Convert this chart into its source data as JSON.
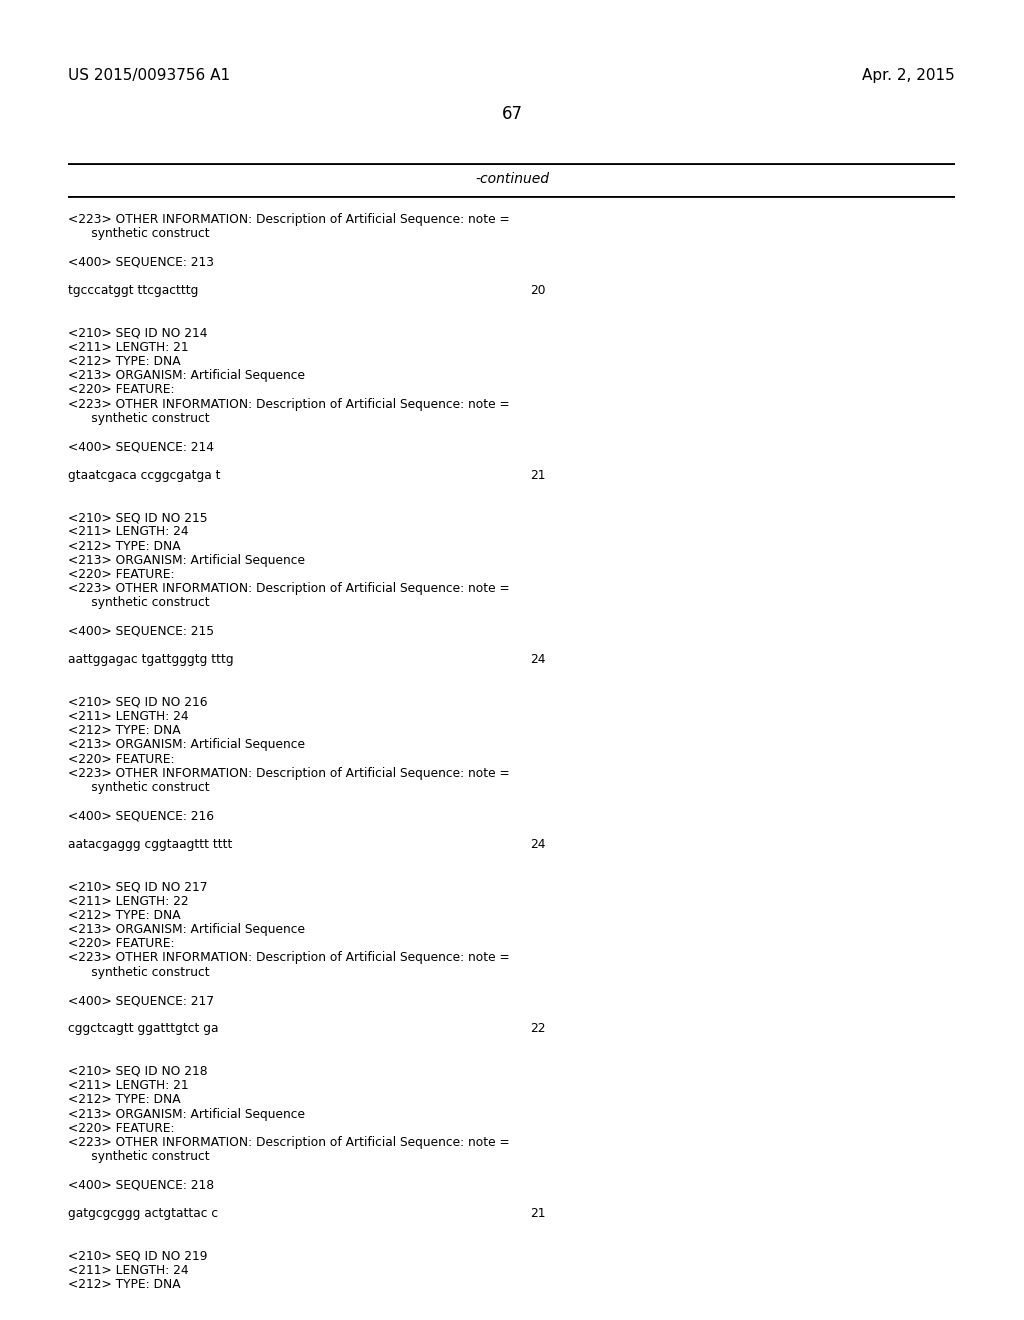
{
  "header_left": "US 2015/0093756 A1",
  "header_right": "Apr. 2, 2015",
  "page_number": "67",
  "continued_label": "-continued",
  "background_color": "#ffffff",
  "text_color": "#000000",
  "content_lines": [
    {
      "text": "<223> OTHER INFORMATION: Description of Artificial Sequence: note =",
      "indent": 0,
      "type": "meta"
    },
    {
      "text": "      synthetic construct",
      "indent": 0,
      "type": "meta"
    },
    {
      "text": "",
      "type": "blank"
    },
    {
      "text": "<400> SEQUENCE: 213",
      "indent": 0,
      "type": "meta"
    },
    {
      "text": "",
      "type": "blank"
    },
    {
      "text": "tgcccatggt ttcgactttg",
      "indent": 0,
      "type": "seq",
      "num": "20"
    },
    {
      "text": "",
      "type": "blank"
    },
    {
      "text": "",
      "type": "blank"
    },
    {
      "text": "<210> SEQ ID NO 214",
      "indent": 0,
      "type": "meta"
    },
    {
      "text": "<211> LENGTH: 21",
      "indent": 0,
      "type": "meta"
    },
    {
      "text": "<212> TYPE: DNA",
      "indent": 0,
      "type": "meta"
    },
    {
      "text": "<213> ORGANISM: Artificial Sequence",
      "indent": 0,
      "type": "meta"
    },
    {
      "text": "<220> FEATURE:",
      "indent": 0,
      "type": "meta"
    },
    {
      "text": "<223> OTHER INFORMATION: Description of Artificial Sequence: note =",
      "indent": 0,
      "type": "meta"
    },
    {
      "text": "      synthetic construct",
      "indent": 0,
      "type": "meta"
    },
    {
      "text": "",
      "type": "blank"
    },
    {
      "text": "<400> SEQUENCE: 214",
      "indent": 0,
      "type": "meta"
    },
    {
      "text": "",
      "type": "blank"
    },
    {
      "text": "gtaatcgaca ccggcgatga t",
      "indent": 0,
      "type": "seq",
      "num": "21"
    },
    {
      "text": "",
      "type": "blank"
    },
    {
      "text": "",
      "type": "blank"
    },
    {
      "text": "<210> SEQ ID NO 215",
      "indent": 0,
      "type": "meta"
    },
    {
      "text": "<211> LENGTH: 24",
      "indent": 0,
      "type": "meta"
    },
    {
      "text": "<212> TYPE: DNA",
      "indent": 0,
      "type": "meta"
    },
    {
      "text": "<213> ORGANISM: Artificial Sequence",
      "indent": 0,
      "type": "meta"
    },
    {
      "text": "<220> FEATURE:",
      "indent": 0,
      "type": "meta"
    },
    {
      "text": "<223> OTHER INFORMATION: Description of Artificial Sequence: note =",
      "indent": 0,
      "type": "meta"
    },
    {
      "text": "      synthetic construct",
      "indent": 0,
      "type": "meta"
    },
    {
      "text": "",
      "type": "blank"
    },
    {
      "text": "<400> SEQUENCE: 215",
      "indent": 0,
      "type": "meta"
    },
    {
      "text": "",
      "type": "blank"
    },
    {
      "text": "aattggagac tgattgggtg tttg",
      "indent": 0,
      "type": "seq",
      "num": "24"
    },
    {
      "text": "",
      "type": "blank"
    },
    {
      "text": "",
      "type": "blank"
    },
    {
      "text": "<210> SEQ ID NO 216",
      "indent": 0,
      "type": "meta"
    },
    {
      "text": "<211> LENGTH: 24",
      "indent": 0,
      "type": "meta"
    },
    {
      "text": "<212> TYPE: DNA",
      "indent": 0,
      "type": "meta"
    },
    {
      "text": "<213> ORGANISM: Artificial Sequence",
      "indent": 0,
      "type": "meta"
    },
    {
      "text": "<220> FEATURE:",
      "indent": 0,
      "type": "meta"
    },
    {
      "text": "<223> OTHER INFORMATION: Description of Artificial Sequence: note =",
      "indent": 0,
      "type": "meta"
    },
    {
      "text": "      synthetic construct",
      "indent": 0,
      "type": "meta"
    },
    {
      "text": "",
      "type": "blank"
    },
    {
      "text": "<400> SEQUENCE: 216",
      "indent": 0,
      "type": "meta"
    },
    {
      "text": "",
      "type": "blank"
    },
    {
      "text": "aatacgaggg cggtaagttt tttt",
      "indent": 0,
      "type": "seq",
      "num": "24"
    },
    {
      "text": "",
      "type": "blank"
    },
    {
      "text": "",
      "type": "blank"
    },
    {
      "text": "<210> SEQ ID NO 217",
      "indent": 0,
      "type": "meta"
    },
    {
      "text": "<211> LENGTH: 22",
      "indent": 0,
      "type": "meta"
    },
    {
      "text": "<212> TYPE: DNA",
      "indent": 0,
      "type": "meta"
    },
    {
      "text": "<213> ORGANISM: Artificial Sequence",
      "indent": 0,
      "type": "meta"
    },
    {
      "text": "<220> FEATURE:",
      "indent": 0,
      "type": "meta"
    },
    {
      "text": "<223> OTHER INFORMATION: Description of Artificial Sequence: note =",
      "indent": 0,
      "type": "meta"
    },
    {
      "text": "      synthetic construct",
      "indent": 0,
      "type": "meta"
    },
    {
      "text": "",
      "type": "blank"
    },
    {
      "text": "<400> SEQUENCE: 217",
      "indent": 0,
      "type": "meta"
    },
    {
      "text": "",
      "type": "blank"
    },
    {
      "text": "cggctcagtt ggatttgtct ga",
      "indent": 0,
      "type": "seq",
      "num": "22"
    },
    {
      "text": "",
      "type": "blank"
    },
    {
      "text": "",
      "type": "blank"
    },
    {
      "text": "<210> SEQ ID NO 218",
      "indent": 0,
      "type": "meta"
    },
    {
      "text": "<211> LENGTH: 21",
      "indent": 0,
      "type": "meta"
    },
    {
      "text": "<212> TYPE: DNA",
      "indent": 0,
      "type": "meta"
    },
    {
      "text": "<213> ORGANISM: Artificial Sequence",
      "indent": 0,
      "type": "meta"
    },
    {
      "text": "<220> FEATURE:",
      "indent": 0,
      "type": "meta"
    },
    {
      "text": "<223> OTHER INFORMATION: Description of Artificial Sequence: note =",
      "indent": 0,
      "type": "meta"
    },
    {
      "text": "      synthetic construct",
      "indent": 0,
      "type": "meta"
    },
    {
      "text": "",
      "type": "blank"
    },
    {
      "text": "<400> SEQUENCE: 218",
      "indent": 0,
      "type": "meta"
    },
    {
      "text": "",
      "type": "blank"
    },
    {
      "text": "gatgcgcggg actgtattac c",
      "indent": 0,
      "type": "seq",
      "num": "21"
    },
    {
      "text": "",
      "type": "blank"
    },
    {
      "text": "",
      "type": "blank"
    },
    {
      "text": "<210> SEQ ID NO 219",
      "indent": 0,
      "type": "meta"
    },
    {
      "text": "<211> LENGTH: 24",
      "indent": 0,
      "type": "meta"
    },
    {
      "text": "<212> TYPE: DNA",
      "indent": 0,
      "type": "meta"
    }
  ]
}
